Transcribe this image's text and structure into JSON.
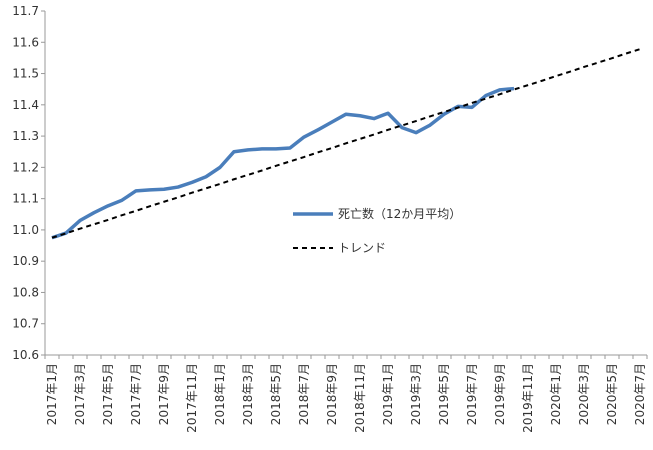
{
  "chart_data": {
    "type": "line",
    "categories": [
      "2017年1月",
      null,
      "2017年3月",
      null,
      "2017年5月",
      null,
      "2017年7月",
      null,
      "2017年9月",
      null,
      "2017年11月",
      null,
      "2018年1月",
      null,
      "2018年3月",
      null,
      "2018年5月",
      null,
      "2018年7月",
      null,
      "2018年9月",
      null,
      "2018年11月",
      null,
      "2019年1月",
      null,
      "2019年3月",
      null,
      "2019年5月",
      null,
      "2019年7月",
      null,
      "2019年9月",
      null,
      "2019年11月",
      null,
      "2020年1月",
      null,
      "2020年3月",
      null,
      "2020年5月",
      null,
      "2020年7月"
    ],
    "series": [
      {
        "name": "死亡数（12か月平均）",
        "color": "#4a7ebb",
        "dash": false,
        "values": [
          10.975,
          10.99,
          11.03,
          11.055,
          11.077,
          11.095,
          11.125,
          11.128,
          11.13,
          11.137,
          11.152,
          11.17,
          11.2,
          11.25,
          11.256,
          11.259,
          11.259,
          11.262,
          11.297,
          11.32,
          11.345,
          11.37,
          11.365,
          11.356,
          11.373,
          11.327,
          11.311,
          11.335,
          11.37,
          11.395,
          11.392,
          11.43,
          11.448,
          11.452,
          null,
          null,
          null,
          null,
          null,
          null,
          null,
          null,
          null
        ]
      },
      {
        "name": "トレンド",
        "color": "#000000",
        "dash": true,
        "values": [
          10.975,
          10.989,
          11.004,
          11.018,
          11.032,
          11.047,
          11.061,
          11.076,
          11.09,
          11.104,
          11.119,
          11.133,
          11.147,
          11.162,
          11.176,
          11.19,
          11.205,
          11.219,
          11.233,
          11.248,
          11.262,
          11.277,
          11.291,
          11.305,
          11.32,
          11.334,
          11.348,
          11.363,
          11.377,
          11.391,
          11.406,
          11.42,
          11.434,
          11.449,
          11.463,
          11.477,
          11.492,
          11.506,
          11.521,
          11.535,
          11.549,
          11.564,
          11.578
        ]
      }
    ],
    "ylim": [
      10.6,
      11.7
    ],
    "yticks": [
      10.6,
      10.7,
      10.8,
      10.9,
      {
        "value": 11,
        "label": "11.0"
      },
      11.1,
      11.2,
      11.3,
      11.4,
      11.5,
      11.6,
      11.7
    ],
    "grid": false
  }
}
